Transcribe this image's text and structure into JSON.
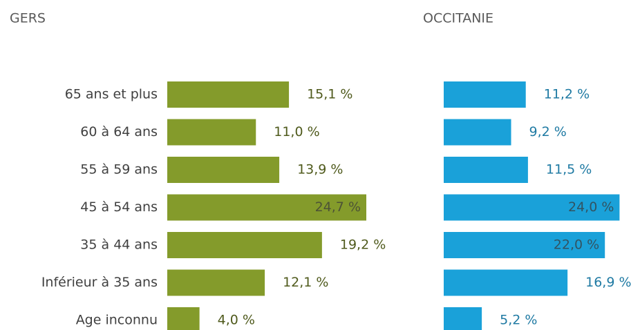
{
  "chart_data": [
    {
      "type": "hbar",
      "title": "GERS",
      "color": "#849b2b",
      "label_color": "#4f5a1c",
      "categories": [
        "65 ans et plus",
        "60 à 64 ans",
        "55 à 59 ans",
        "45 à 54 ans",
        "35 à 44 ans",
        "Inférieur à 35 ans",
        "Age inconnu"
      ],
      "values": [
        15.1,
        11.0,
        13.9,
        24.7,
        19.2,
        12.1,
        4.0
      ],
      "value_labels": [
        "15,1 %",
        "11,0 %",
        "13,9 %",
        "24,7 %",
        "19,2 %",
        "12,1 %",
        "4,0 %"
      ]
    },
    {
      "type": "hbar",
      "title": "OCCITANIE",
      "color": "#1aa1d9",
      "label_color": "#1f7aa3",
      "values": [
        11.2,
        9.2,
        11.5,
        24.0,
        22.0,
        16.9,
        5.2
      ],
      "value_labels": [
        "11,2 %",
        "9,2 %",
        "11,5 %",
        "24,0 %",
        "22,0 %",
        "16,9 %",
        "5,2 %"
      ]
    }
  ]
}
